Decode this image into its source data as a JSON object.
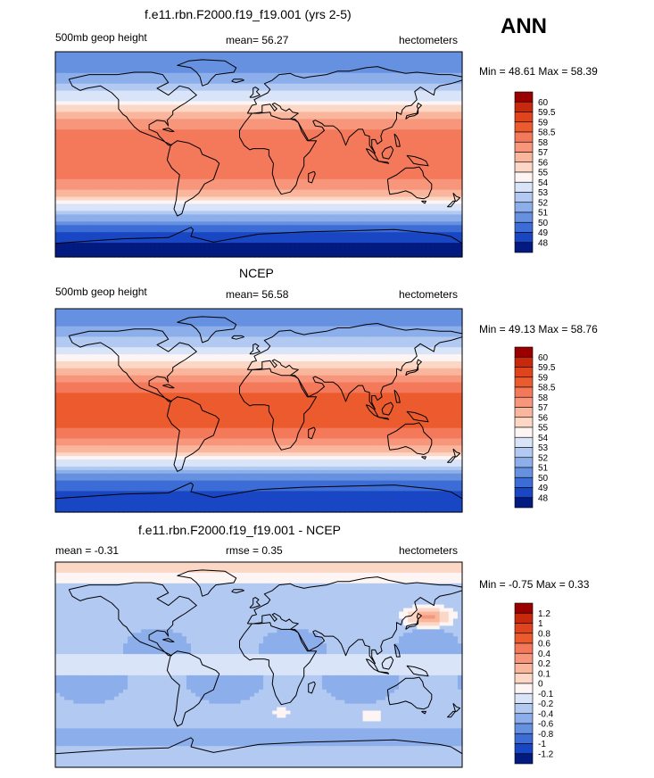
{
  "season": "ANN",
  "land_outline": [
    [
      [
        -168,
        66
      ],
      [
        -150,
        70
      ],
      [
        -140,
        70
      ],
      [
        -125,
        70
      ],
      [
        -110,
        72
      ],
      [
        -95,
        72
      ],
      [
        -85,
        70
      ],
      [
        -80,
        63
      ],
      [
        -90,
        58
      ],
      [
        -80,
        52
      ],
      [
        -70,
        60
      ],
      [
        -62,
        58
      ],
      [
        -55,
        52
      ],
      [
        -65,
        45
      ],
      [
        -70,
        42
      ],
      [
        -76,
        38
      ],
      [
        -76,
        35
      ],
      [
        -81,
        30
      ],
      [
        -80,
        25
      ],
      [
        -83,
        29
      ],
      [
        -90,
        30
      ],
      [
        -97,
        26
      ],
      [
        -97,
        22
      ],
      [
        -90,
        19
      ],
      [
        -88,
        16
      ],
      [
        -84,
        12
      ],
      [
        -80,
        8
      ],
      [
        -77,
        8
      ],
      [
        -85,
        12
      ],
      [
        -92,
        15
      ],
      [
        -105,
        20
      ],
      [
        -110,
        24
      ],
      [
        -115,
        30
      ],
      [
        -117,
        33
      ],
      [
        -120,
        35
      ],
      [
        -124,
        40
      ],
      [
        -124,
        48
      ],
      [
        -130,
        54
      ],
      [
        -140,
        60
      ],
      [
        -152,
        58
      ],
      [
        -158,
        56
      ],
      [
        -165,
        60
      ],
      [
        -168,
        66
      ]
    ],
    [
      [
        -78,
        8
      ],
      [
        -72,
        12
      ],
      [
        -62,
        10
      ],
      [
        -52,
        5
      ],
      [
        -50,
        0
      ],
      [
        -38,
        -5
      ],
      [
        -35,
        -8
      ],
      [
        -40,
        -22
      ],
      [
        -48,
        -26
      ],
      [
        -53,
        -34
      ],
      [
        -58,
        -38
      ],
      [
        -65,
        -42
      ],
      [
        -68,
        -52
      ],
      [
        -72,
        -54
      ],
      [
        -75,
        -48
      ],
      [
        -73,
        -40
      ],
      [
        -72,
        -30
      ],
      [
        -70,
        -18
      ],
      [
        -77,
        -12
      ],
      [
        -81,
        -5
      ],
      [
        -80,
        0
      ],
      [
        -78,
        8
      ]
    ],
    [
      [
        -50,
        60
      ],
      [
        -45,
        62
      ],
      [
        -42,
        66
      ],
      [
        -38,
        70
      ],
      [
        -22,
        72
      ],
      [
        -20,
        76
      ],
      [
        -30,
        82
      ],
      [
        -50,
        83
      ],
      [
        -62,
        82
      ],
      [
        -72,
        78
      ],
      [
        -60,
        76
      ],
      [
        -55,
        72
      ],
      [
        -52,
        68
      ],
      [
        -50,
        60
      ]
    ],
    [
      [
        -10,
        36
      ],
      [
        -6,
        43
      ],
      [
        -2,
        44
      ],
      [
        -4,
        48
      ],
      [
        2,
        51
      ],
      [
        8,
        54
      ],
      [
        10,
        57
      ],
      [
        5,
        62
      ],
      [
        12,
        65
      ],
      [
        18,
        70
      ],
      [
        28,
        71
      ],
      [
        32,
        69
      ],
      [
        40,
        67
      ],
      [
        45,
        68
      ],
      [
        60,
        70
      ],
      [
        70,
        73
      ],
      [
        80,
        73
      ],
      [
        95,
        76
      ],
      [
        105,
        77
      ],
      [
        115,
        74
      ],
      [
        130,
        71
      ],
      [
        140,
        72
      ],
      [
        160,
        70
      ],
      [
        170,
        70
      ],
      [
        180,
        68
      ],
      [
        180,
        65
      ],
      [
        170,
        62
      ],
      [
        160,
        60
      ],
      [
        156,
        57
      ],
      [
        155,
        52
      ],
      [
        143,
        59
      ],
      [
        138,
        55
      ],
      [
        140,
        48
      ],
      [
        135,
        43
      ],
      [
        130,
        42
      ],
      [
        127,
        39
      ],
      [
        126,
        35
      ],
      [
        122,
        37
      ],
      [
        122,
        31
      ],
      [
        118,
        24
      ],
      [
        110,
        21
      ],
      [
        108,
        16
      ],
      [
        109,
        12
      ],
      [
        105,
        9
      ],
      [
        103,
        13
      ],
      [
        100,
        13
      ],
      [
        100,
        7
      ],
      [
        103,
        1
      ],
      [
        98,
        8
      ],
      [
        98,
        16
      ],
      [
        94,
        17
      ],
      [
        92,
        22
      ],
      [
        88,
        22
      ],
      [
        80,
        15
      ],
      [
        77,
        8
      ],
      [
        73,
        18
      ],
      [
        70,
        22
      ],
      [
        66,
        25
      ],
      [
        58,
        25
      ],
      [
        56,
        27
      ],
      [
        50,
        30
      ],
      [
        48,
        29
      ],
      [
        50,
        25
      ],
      [
        56,
        24
      ],
      [
        58,
        21
      ],
      [
        52,
        16
      ],
      [
        44,
        12
      ],
      [
        43,
        14
      ],
      [
        39,
        21
      ],
      [
        35,
        28
      ],
      [
        32,
        30
      ],
      [
        28,
        31
      ],
      [
        35,
        36
      ],
      [
        30,
        37
      ],
      [
        27,
        40
      ],
      [
        24,
        38
      ],
      [
        20,
        40
      ],
      [
        19,
        42
      ],
      [
        14,
        45
      ],
      [
        12,
        44
      ],
      [
        16,
        40
      ],
      [
        14,
        38
      ],
      [
        10,
        44
      ],
      [
        3,
        43
      ],
      [
        3,
        37
      ],
      [
        -5,
        36
      ],
      [
        -10,
        36
      ]
    ],
    [
      [
        -17,
        15
      ],
      [
        -17,
        21
      ],
      [
        -13,
        27
      ],
      [
        -9,
        32
      ],
      [
        -6,
        36
      ],
      [
        0,
        36
      ],
      [
        10,
        37
      ],
      [
        11,
        34
      ],
      [
        20,
        31
      ],
      [
        30,
        31
      ],
      [
        32,
        31
      ],
      [
        35,
        28
      ],
      [
        38,
        20
      ],
      [
        43,
        12
      ],
      [
        51,
        12
      ],
      [
        45,
        2
      ],
      [
        40,
        -3
      ],
      [
        40,
        -10
      ],
      [
        35,
        -20
      ],
      [
        33,
        -27
      ],
      [
        28,
        -33
      ],
      [
        20,
        -35
      ],
      [
        18,
        -32
      ],
      [
        15,
        -27
      ],
      [
        12,
        -17
      ],
      [
        13,
        -8
      ],
      [
        9,
        -1
      ],
      [
        9,
        4
      ],
      [
        5,
        5
      ],
      [
        -5,
        5
      ],
      [
        -8,
        4
      ],
      [
        -13,
        8
      ],
      [
        -17,
        15
      ]
    ],
    [
      [
        114,
        -22
      ],
      [
        122,
        -18
      ],
      [
        130,
        -12
      ],
      [
        137,
        -12
      ],
      [
        142,
        -11
      ],
      [
        145,
        -15
      ],
      [
        146,
        -19
      ],
      [
        153,
        -26
      ],
      [
        153,
        -30
      ],
      [
        150,
        -37
      ],
      [
        146,
        -39
      ],
      [
        140,
        -38
      ],
      [
        135,
        -34
      ],
      [
        130,
        -32
      ],
      [
        123,
        -34
      ],
      [
        116,
        -35
      ],
      [
        115,
        -31
      ],
      [
        114,
        -22
      ]
    ],
    [
      [
        -180,
        -78
      ],
      [
        -150,
        -76
      ],
      [
        -120,
        -74
      ],
      [
        -80,
        -73
      ],
      [
        -60,
        -64
      ],
      [
        -58,
        -66
      ],
      [
        -60,
        -72
      ],
      [
        -40,
        -77
      ],
      [
        0,
        -70
      ],
      [
        40,
        -68
      ],
      [
        80,
        -67
      ],
      [
        120,
        -66
      ],
      [
        160,
        -70
      ],
      [
        170,
        -72
      ],
      [
        180,
        -78
      ],
      [
        180,
        -90
      ],
      [
        -180,
        -90
      ],
      [
        -180,
        -78
      ]
    ],
    [
      [
        -8,
        50
      ],
      [
        -5,
        53
      ],
      [
        -5,
        58
      ],
      [
        -3,
        59
      ],
      [
        0,
        57
      ],
      [
        -2,
        55
      ],
      [
        1,
        52
      ],
      [
        -5,
        50
      ],
      [
        -8,
        50
      ]
    ],
    [
      [
        130,
        31
      ],
      [
        131,
        34
      ],
      [
        135,
        35
      ],
      [
        140,
        36
      ],
      [
        141,
        40
      ],
      [
        140,
        42
      ],
      [
        141,
        45
      ],
      [
        144,
        43
      ],
      [
        141,
        40
      ],
      [
        141,
        36
      ],
      [
        138,
        34
      ],
      [
        133,
        33
      ],
      [
        130,
        31
      ]
    ],
    [
      [
        95,
        5
      ],
      [
        98,
        4
      ],
      [
        102,
        1
      ],
      [
        106,
        -6
      ],
      [
        102,
        -4
      ],
      [
        98,
        0
      ],
      [
        95,
        5
      ]
    ],
    [
      [
        106,
        -6
      ],
      [
        115,
        -8
      ],
      [
        114,
        -7
      ],
      [
        106,
        -6
      ]
    ],
    [
      [
        109,
        1
      ],
      [
        112,
        5
      ],
      [
        117,
        7
      ],
      [
        119,
        4
      ],
      [
        117,
        -1
      ],
      [
        115,
        -4
      ],
      [
        110,
        -3
      ],
      [
        109,
        1
      ]
    ],
    [
      [
        131,
        -1
      ],
      [
        138,
        -2
      ],
      [
        144,
        -4
      ],
      [
        148,
        -6
      ],
      [
        150,
        -10
      ],
      [
        142,
        -9
      ],
      [
        137,
        -8
      ],
      [
        133,
        -3
      ],
      [
        131,
        -1
      ]
    ],
    [
      [
        49,
        -15
      ],
      [
        50,
        -17
      ],
      [
        47,
        -25
      ],
      [
        44,
        -24
      ],
      [
        44,
        -17
      ],
      [
        49,
        -15
      ]
    ],
    [
      [
        172,
        -34
      ],
      [
        175,
        -37
      ],
      [
        178,
        -38
      ],
      [
        175,
        -41
      ],
      [
        172,
        -41
      ],
      [
        167,
        -46
      ],
      [
        170,
        -46
      ],
      [
        174,
        -41
      ],
      [
        172,
        -34
      ]
    ],
    [
      [
        -24,
        64
      ],
      [
        -22,
        66
      ],
      [
        -15,
        66
      ],
      [
        -13,
        65
      ],
      [
        -20,
        63
      ],
      [
        -24,
        64
      ]
    ],
    [
      [
        -85,
        22
      ],
      [
        -80,
        23
      ],
      [
        -75,
        20
      ],
      [
        -78,
        20
      ],
      [
        -85,
        22
      ]
    ],
    [
      [
        120,
        18
      ],
      [
        122,
        16
      ],
      [
        124,
        12
      ],
      [
        125,
        7
      ],
      [
        122,
        7
      ],
      [
        120,
        18
      ]
    ],
    [
      [
        144,
        -41
      ],
      [
        148,
        -41
      ],
      [
        147,
        -43
      ],
      [
        144,
        -41
      ]
    ]
  ],
  "panels": [
    {
      "title": "f.e11.rbn.F2000.f19_f19.001 (yrs 2-5)",
      "left_label": "500mb geop height",
      "center_label": "mean=  56.27",
      "right_label": "hectometers",
      "minmax": "Min =  48.61 Max =  58.39",
      "colorbar_labels": [
        "60",
        "59.5",
        "59",
        "58.5",
        "58",
        "57",
        "56",
        "55",
        "54",
        "53",
        "52",
        "51",
        "50",
        "49",
        "48"
      ],
      "colorbar_colors": [
        "#9b0000",
        "#c8290c",
        "#e0441d",
        "#ec5b2e",
        "#f4785a",
        "#f7967a",
        "#fab69c",
        "#fcd7c6",
        "#fdf4f4",
        "#d9e4f8",
        "#b2c9f2",
        "#8caeea",
        "#6690e0",
        "#3c6cd5",
        "#1947c4",
        "#031a80"
      ],
      "map": "model",
      "chart_data": {
        "type": "filled contour map",
        "variable": "500mb geop height",
        "units": "hectometers",
        "mean": 56.27,
        "min": 48.61,
        "max": 58.39,
        "contour_levels": [
          48,
          49,
          50,
          51,
          52,
          53,
          54,
          55,
          56,
          57,
          58,
          58.5,
          59,
          59.5,
          60
        ],
        "lon_range": [
          -180,
          180
        ],
        "lat_range": [
          -90,
          90
        ]
      }
    },
    {
      "title": "NCEP",
      "left_label": "500mb geop height",
      "center_label": "mean=  56.58",
      "right_label": "hectometers",
      "minmax": "Min =  49.13 Max =  58.76",
      "colorbar_labels": [
        "60",
        "59.5",
        "59",
        "58.5",
        "58",
        "57",
        "56",
        "55",
        "54",
        "53",
        "52",
        "51",
        "50",
        "49",
        "48"
      ],
      "colorbar_colors": [
        "#9b0000",
        "#c8290c",
        "#e0441d",
        "#ec5b2e",
        "#f4785a",
        "#f7967a",
        "#fab69c",
        "#fcd7c6",
        "#fdf4f4",
        "#d9e4f8",
        "#b2c9f2",
        "#8caeea",
        "#6690e0",
        "#3c6cd5",
        "#1947c4",
        "#031a80"
      ],
      "map": "obs",
      "chart_data": {
        "type": "filled contour map",
        "variable": "500mb geop height",
        "units": "hectometers",
        "mean": 56.58,
        "min": 49.13,
        "max": 58.76,
        "contour_levels": [
          48,
          49,
          50,
          51,
          52,
          53,
          54,
          55,
          56,
          57,
          58,
          58.5,
          59,
          59.5,
          60
        ],
        "lon_range": [
          -180,
          180
        ],
        "lat_range": [
          -90,
          90
        ]
      }
    },
    {
      "title": "f.e11.rbn.F2000.f19_f19.001 - NCEP",
      "left_label": "mean =  -0.31",
      "center_label": "rmse =   0.35",
      "right_label": "hectometers",
      "minmax": "Min =  -0.75 Max =   0.33",
      "colorbar_labels": [
        "1.2",
        "1",
        "0.8",
        "0.6",
        "0.4",
        "0.2",
        "0.1",
        "0",
        "-0.1",
        "-0.2",
        "-0.4",
        "-0.6",
        "-0.8",
        "-1",
        "-1.2"
      ],
      "colorbar_colors": [
        "#9b0000",
        "#c8290c",
        "#e0441d",
        "#ec5b2e",
        "#f4785a",
        "#f7967a",
        "#fab69c",
        "#fcd7c6",
        "#fdf4f4",
        "#d9e4f8",
        "#b2c9f2",
        "#8caeea",
        "#6690e0",
        "#3c6cd5",
        "#1947c4",
        "#031a80"
      ],
      "map": "diff",
      "chart_data": {
        "type": "filled contour map",
        "variable": "500mb geop height difference",
        "units": "hectometers",
        "mean": -0.31,
        "rmse": 0.35,
        "min": -0.75,
        "max": 0.33,
        "contour_levels": [
          -1.2,
          -1,
          -0.8,
          -0.6,
          -0.4,
          -0.2,
          -0.1,
          0,
          0.1,
          0.2,
          0.4,
          0.6,
          0.8,
          1,
          1.2
        ],
        "lon_range": [
          -180,
          180
        ],
        "lat_range": [
          -90,
          90
        ]
      }
    }
  ]
}
